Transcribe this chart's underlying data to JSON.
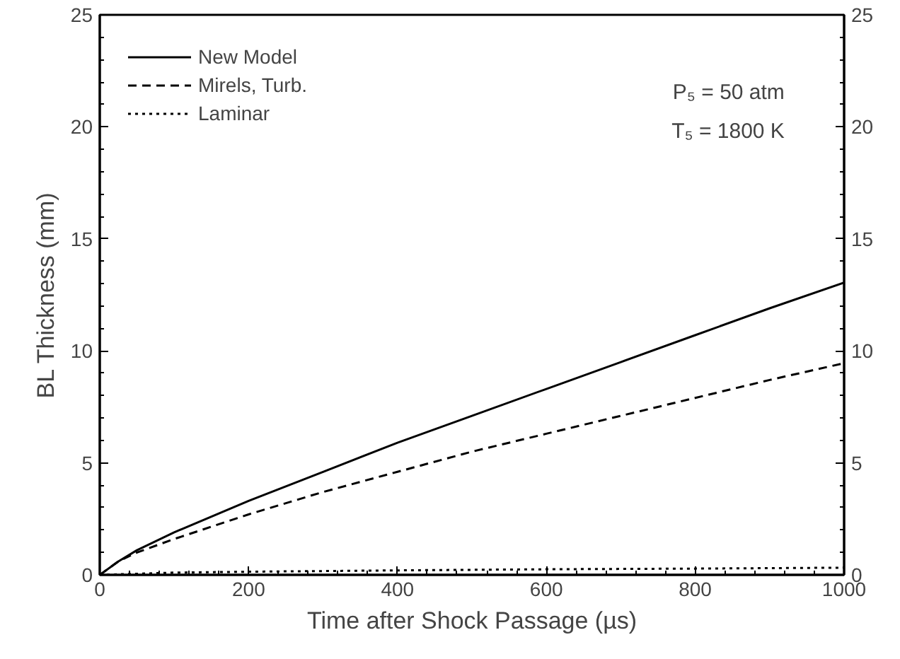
{
  "chart_data": {
    "type": "line",
    "xlabel": "Time after Shock Passage (µs)",
    "ylabel": "BL Thickness (mm)",
    "xlim": [
      0,
      1000
    ],
    "xticks": [
      0,
      200,
      400,
      600,
      800,
      1000
    ],
    "ylim": [
      0,
      25
    ],
    "yticks": [
      0,
      5,
      10,
      15,
      20,
      25
    ],
    "y2lim": [
      0,
      25
    ],
    "y2ticks": [
      0,
      5,
      10,
      15,
      20,
      25
    ],
    "legend": "top left",
    "grid": false,
    "annotations": [
      "P₅ = 50 atm",
      "T₅ = 1800 K"
    ],
    "series": [
      {
        "name": "New Model",
        "color": "#000000",
        "line_style": "solid",
        "x": [
          0,
          25,
          50,
          100,
          200,
          300,
          400,
          500,
          600,
          700,
          800,
          900,
          1000
        ],
        "values": [
          0,
          0.6,
          1.1,
          1.9,
          3.3,
          4.6,
          5.9,
          7.1,
          8.3,
          9.5,
          10.7,
          11.9,
          13.05
        ]
      },
      {
        "name": "Mirels, Turb.",
        "color": "#000000",
        "line_style": "dashed",
        "x": [
          0,
          25,
          50,
          100,
          200,
          300,
          400,
          500,
          600,
          700,
          800,
          900,
          1000
        ],
        "values": [
          0,
          0.6,
          1.0,
          1.6,
          2.7,
          3.7,
          4.6,
          5.5,
          6.3,
          7.1,
          7.9,
          8.7,
          9.45
        ]
      },
      {
        "name": "Laminar",
        "color": "#000000",
        "line_style": "dotted",
        "x": [
          0,
          100,
          200,
          400,
          600,
          800,
          1000
        ],
        "values": [
          0,
          0.1,
          0.14,
          0.2,
          0.25,
          0.28,
          0.32
        ]
      }
    ]
  }
}
